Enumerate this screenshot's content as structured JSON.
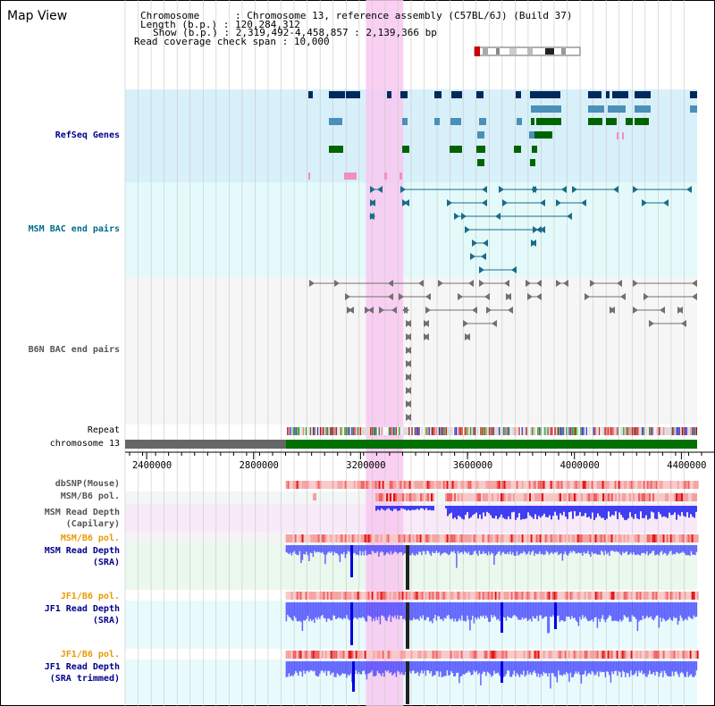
{
  "map_title": "Map View",
  "info": {
    "chromosome_label": "Chromosome",
    "chromosome_value": "Chromosome 13, reference assembly (C57BL/6J) (Build 37)",
    "length_label": "Length (b.p.)",
    "length_value": "120,284,312",
    "show_label": "Show (b.p.)",
    "show_value": "2,319,492-4,458,857 : 2,139,366 bp",
    "coverage_label": "Read coverage check span",
    "coverage_value": "10,000",
    "sep": ":"
  },
  "tracks": {
    "refseq": "RefSeq Genes",
    "msm_bac": "MSM BAC end pairs",
    "b6n_bac": "B6N BAC end pairs",
    "repeat": "Repeat",
    "chromosome": "chromosome 13",
    "dbsnp": "dbSNP(Mouse)",
    "msm_b6_pol_1": "MSM/B6 pol.",
    "msm_depth_cap_1": "MSM Read Depth",
    "msm_depth_cap_2": "(Capilary)",
    "msm_b6_pol_2": "MSM/B6 pol.",
    "msm_depth_sra_1": "MSM Read Depth",
    "msm_depth_sra_2": "(SRA)",
    "jf1_b6_pol_1": "JF1/B6 pol.",
    "jf1_depth_sra_1": "JF1 Read Depth",
    "jf1_depth_sra_2": "(SRA)",
    "jf1_b6_pol_2": "JF1/B6 pol.",
    "jf1_depth_trim_1": "JF1 Read Depth",
    "jf1_depth_trim_2": "(SRA trimmed)"
  },
  "axis": {
    "ticks": [
      {
        "value": 2400000,
        "label": "2400000"
      },
      {
        "value": 2800000,
        "label": "2800000"
      },
      {
        "value": 3200000,
        "label": "3200000"
      },
      {
        "value": 3600000,
        "label": "3600000"
      },
      {
        "value": 4000000,
        "label": "4000000"
      },
      {
        "value": 4400000,
        "label": "4400000"
      }
    ],
    "start": 2319492,
    "end": 4458857,
    "data_start": 2920000,
    "highlight_start": 3220000,
    "highlight_end": 3360000
  },
  "colors": {
    "gene_navy": "#002a5c",
    "gene_blue": "#4a90b8",
    "gene_green": "#006400",
    "gene_pink": "#f090c0",
    "bac_teal": "#1a6b8a",
    "bac_grey": "#707070",
    "depth_blue": "#3333ff",
    "pol_red": "#e03030",
    "highlight": "#f8c8f0",
    "chrom_green": "#007000",
    "chrom_grey": "#666666"
  }
}
